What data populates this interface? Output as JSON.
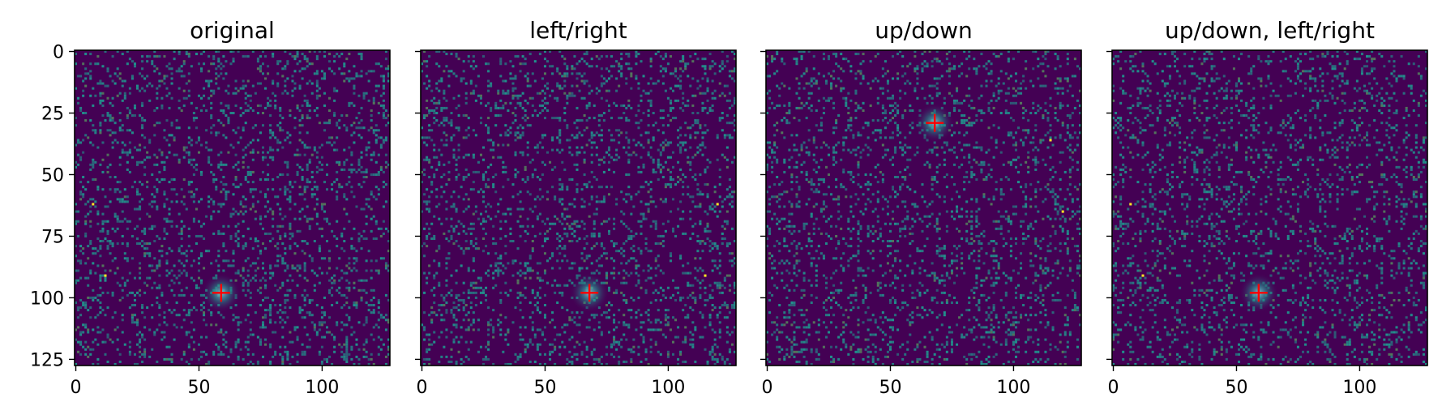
{
  "colors": {
    "background": "#ffffff",
    "cmap_low": "#440154",
    "cmap_mid": "#21918c",
    "cmap_bright": "#5ec962",
    "cmap_high": "#fde725",
    "marker": "#ff0000",
    "axis": "#000000"
  },
  "chart_data": [
    {
      "type": "heatmap",
      "title": "original",
      "image_size": [
        128,
        128
      ],
      "colormap": "viridis",
      "x_ticks": [
        0,
        50,
        100
      ],
      "y_ticks": [
        0,
        25,
        50,
        75,
        100,
        125
      ],
      "xlim": [
        -0.5,
        127.5
      ],
      "ylim": [
        127.5,
        -0.5
      ],
      "show_y_tick_labels": true,
      "blob_center": [
        59,
        98
      ],
      "marker": {
        "symbol": "+",
        "color": "red",
        "x": 59,
        "y": 98
      },
      "hot_pixels": [
        [
          7,
          62
        ],
        [
          12,
          91
        ]
      ],
      "grid": false
    },
    {
      "type": "heatmap",
      "title": "left/right",
      "image_size": [
        128,
        128
      ],
      "colormap": "viridis",
      "x_ticks": [
        0,
        50,
        100
      ],
      "y_ticks": [
        0,
        25,
        50,
        75,
        100,
        125
      ],
      "xlim": [
        -0.5,
        127.5
      ],
      "ylim": [
        127.5,
        -0.5
      ],
      "show_y_tick_labels": false,
      "blob_center": [
        68,
        98
      ],
      "marker": {
        "symbol": "+",
        "color": "red",
        "x": 68,
        "y": 98
      },
      "hot_pixels": [
        [
          120,
          62
        ],
        [
          115,
          91
        ]
      ],
      "grid": false
    },
    {
      "type": "heatmap",
      "title": "up/down",
      "image_size": [
        128,
        128
      ],
      "colormap": "viridis",
      "x_ticks": [
        0,
        50,
        100
      ],
      "y_ticks": [
        0,
        25,
        50,
        75,
        100,
        125
      ],
      "xlim": [
        -0.5,
        127.5
      ],
      "ylim": [
        127.5,
        -0.5
      ],
      "show_y_tick_labels": false,
      "blob_center": [
        68,
        29
      ],
      "marker": {
        "symbol": "+",
        "color": "red",
        "x": 68,
        "y": 29
      },
      "hot_pixels": [
        [
          115,
          36
        ],
        [
          120,
          65
        ]
      ],
      "grid": false
    },
    {
      "type": "heatmap",
      "title": "up/down, left/right",
      "image_size": [
        128,
        128
      ],
      "colormap": "viridis",
      "x_ticks": [
        0,
        50,
        100
      ],
      "y_ticks": [
        0,
        25,
        50,
        75,
        100,
        125
      ],
      "xlim": [
        -0.5,
        127.5
      ],
      "ylim": [
        127.5,
        -0.5
      ],
      "show_y_tick_labels": false,
      "blob_center": [
        59,
        98
      ],
      "marker": {
        "symbol": "+",
        "color": "red",
        "x": 59,
        "y": 98
      },
      "hot_pixels": [
        [
          7,
          62
        ],
        [
          12,
          91
        ]
      ],
      "grid": false
    }
  ]
}
